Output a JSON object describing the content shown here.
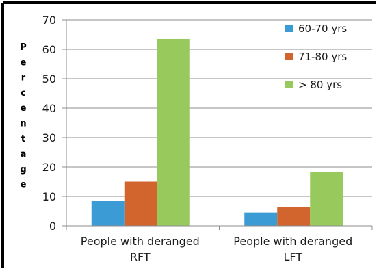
{
  "chart_data": {
    "type": "bar",
    "categories": [
      [
        "People with deranged",
        "RFT"
      ],
      [
        "People with deranged",
        "LFT"
      ]
    ],
    "series": [
      {
        "name": "60-70 yrs",
        "color": "#3b9bd4",
        "values": [
          8.5,
          4.5
        ]
      },
      {
        "name": "71-80 yrs",
        "color": "#d2642e",
        "values": [
          15,
          6.3
        ]
      },
      {
        "name": "> 80 yrs",
        "color": "#98c95c",
        "values": [
          63.5,
          18.2
        ]
      }
    ],
    "ylabel": "Percentage",
    "ylim": [
      0,
      70
    ],
    "yticks": [
      0,
      10,
      20,
      30,
      40,
      50,
      60,
      70
    ],
    "grid": true,
    "legend": "top-right"
  }
}
